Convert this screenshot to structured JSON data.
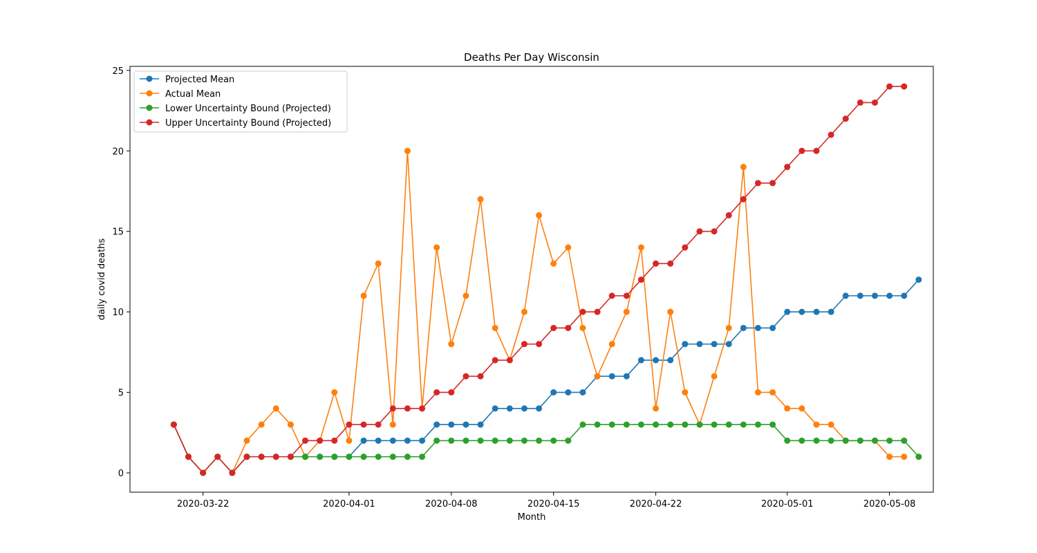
{
  "chart_data": {
    "type": "line",
    "title": "Deaths Per Day Wisconsin",
    "xlabel": "Month",
    "ylabel": "daily covid deaths",
    "x_start": "2020-03-20",
    "xlim": [
      "2020-03-17",
      "2020-05-11"
    ],
    "ylim": [
      -1.2,
      25.25
    ],
    "x_ticks": [
      "2020-03-22",
      "2020-04-01",
      "2020-04-08",
      "2020-04-15",
      "2020-04-22",
      "2020-05-01",
      "2020-05-08"
    ],
    "y_ticks": [
      0,
      5,
      10,
      15,
      20,
      25
    ],
    "grid": false,
    "legend_position": "top-left",
    "series": [
      {
        "name": "Projected Mean",
        "color": "#1f77b4",
        "values": [
          3,
          1,
          0,
          1,
          0,
          1,
          1,
          1,
          1,
          1,
          1,
          1,
          1,
          2,
          2,
          2,
          2,
          2,
          3,
          3,
          3,
          3,
          4,
          4,
          4,
          4,
          5,
          5,
          5,
          6,
          6,
          6,
          7,
          7,
          7,
          8,
          8,
          8,
          8,
          9,
          9,
          9,
          10,
          10,
          10,
          10,
          11,
          11,
          11,
          11,
          11,
          12
        ]
      },
      {
        "name": "Actual Mean",
        "color": "#ff7f0e",
        "values": [
          3,
          1,
          0,
          1,
          0,
          2,
          3,
          4,
          3,
          1,
          2,
          5,
          2,
          11,
          13,
          3,
          20,
          4,
          14,
          8,
          11,
          17,
          9,
          7,
          10,
          16,
          13,
          14,
          9,
          6,
          8,
          10,
          14,
          4,
          10,
          5,
          3,
          6,
          9,
          19,
          5,
          5,
          4,
          4,
          3,
          3,
          2,
          2,
          2,
          1,
          1
        ]
      },
      {
        "name": "Lower Uncertainty Bound (Projected)",
        "color": "#2ca02c",
        "values": [
          3,
          1,
          0,
          1,
          0,
          1,
          1,
          1,
          1,
          1,
          1,
          1,
          1,
          1,
          1,
          1,
          1,
          1,
          2,
          2,
          2,
          2,
          2,
          2,
          2,
          2,
          2,
          2,
          3,
          3,
          3,
          3,
          3,
          3,
          3,
          3,
          3,
          3,
          3,
          3,
          3,
          3,
          2,
          2,
          2,
          2,
          2,
          2,
          2,
          2,
          2,
          1
        ]
      },
      {
        "name": "Upper Uncertainty Bound (Projected)",
        "color": "#d62728",
        "values": [
          3,
          1,
          0,
          1,
          0,
          1,
          1,
          1,
          1,
          2,
          2,
          2,
          3,
          3,
          3,
          4,
          4,
          4,
          5,
          5,
          6,
          6,
          7,
          7,
          8,
          8,
          9,
          9,
          10,
          10,
          11,
          11,
          12,
          13,
          13,
          14,
          15,
          15,
          16,
          17,
          18,
          18,
          19,
          20,
          20,
          21,
          22,
          23,
          23,
          24,
          24
        ]
      }
    ]
  }
}
